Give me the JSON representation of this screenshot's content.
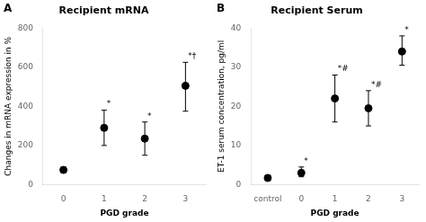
{
  "chart_data": [
    {
      "type": "scatter",
      "panel_label": "A",
      "title": "Recipient mRNA",
      "xlabel": "PGD grade",
      "ylabel": "Changes in mRNA expression in %",
      "categories": [
        "0",
        "1",
        "2",
        "3"
      ],
      "values": [
        75,
        290,
        235,
        505
      ],
      "yerr_low": [
        15,
        90,
        85,
        130
      ],
      "yerr_high": [
        15,
        90,
        85,
        120
      ],
      "annotations": [
        null,
        "*",
        "*",
        "*†"
      ],
      "color": "black",
      "ylim": [
        0,
        800
      ],
      "yticks": [
        0,
        200,
        400,
        600,
        800
      ],
      "grid": false
    },
    {
      "type": "scatter",
      "panel_label": "B",
      "title": "Recipient Serum",
      "xlabel": "PGD grade",
      "ylabel": "ET-1 serum concentration, pg/ml",
      "categories": [
        "control",
        "0",
        "1",
        "2",
        "3"
      ],
      "values": [
        1.7,
        3.0,
        22.0,
        19.5,
        34.0
      ],
      "yerr_low": [
        0.5,
        1.0,
        6.0,
        4.5,
        3.5
      ],
      "yerr_high": [
        0.5,
        1.5,
        6.0,
        4.5,
        4.0
      ],
      "annotations": [
        null,
        "*",
        "*#",
        "*#",
        "*"
      ],
      "color": "black",
      "ylim": [
        0,
        40
      ],
      "yticks": [
        0,
        10,
        20,
        30,
        40
      ],
      "grid": false
    }
  ]
}
